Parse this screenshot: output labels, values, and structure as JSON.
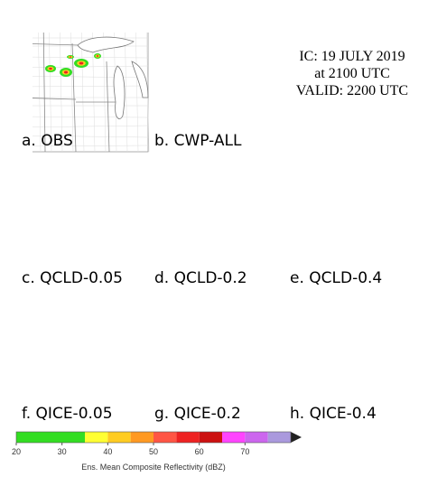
{
  "header": {
    "lines": [
      "IC: 19 JULY 2019",
      "at 2100 UTC",
      "VALID: 2200 UTC"
    ]
  },
  "panels": [
    {
      "label": "a.  OBS"
    },
    {
      "label": "b.  CWP-ALL"
    },
    {
      "label": "c.  QCLD-0.05"
    },
    {
      "label": "d.  QCLD-0.2"
    },
    {
      "label": "e.  QCLD-0.4"
    },
    {
      "label": "f.  QICE-0.05"
    },
    {
      "label": "g.  QICE-0.2"
    },
    {
      "label": "h.  QICE-0.4"
    }
  ],
  "colorbar": {
    "label": "Ens. Mean Composite Reflectivity (dBZ)",
    "range": [
      20,
      80
    ],
    "ticks": [
      20,
      30,
      40,
      50,
      60,
      70
    ],
    "bounds": [
      20,
      35,
      40,
      45,
      50,
      55,
      60,
      65,
      70,
      75,
      80
    ],
    "colors": [
      "#33dd22",
      "#ffff33",
      "#ffcc22",
      "#ff9922",
      "#ff5544",
      "#ee2222",
      "#cc1111",
      "#ff44ff",
      "#cc66ee",
      "#aa99dd"
    ]
  }
}
